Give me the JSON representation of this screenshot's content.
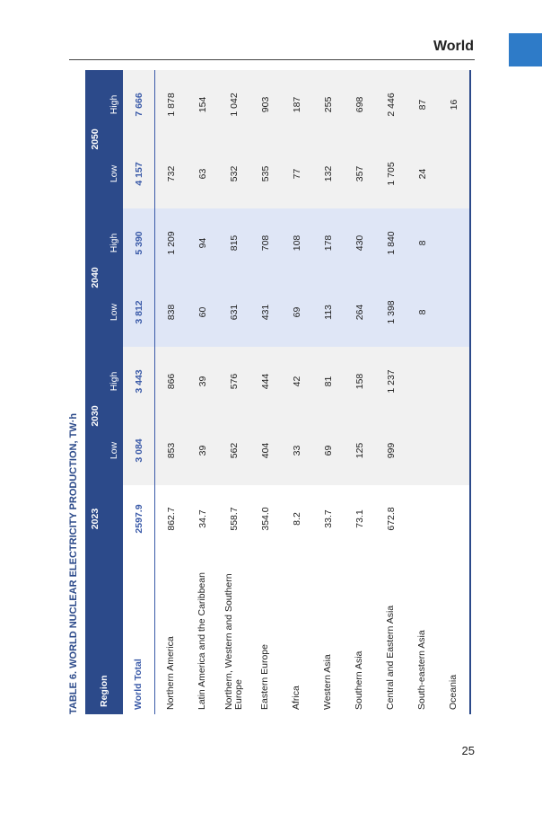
{
  "header": {
    "section": "World"
  },
  "table": {
    "title": "TABLE 6. WORLD NUCLEAR ELECTRICITY PRODUCTION, TW·h",
    "columns": {
      "region": "Region",
      "base_year": "2023",
      "years": [
        {
          "year": "2030",
          "low": "Low",
          "high": "High"
        },
        {
          "year": "2040",
          "low": "Low",
          "high": "High"
        },
        {
          "year": "2050",
          "low": "Low",
          "high": "High"
        }
      ]
    },
    "rows": [
      {
        "region": "World Total",
        "values": [
          "2597.9",
          "3 084",
          "3 443",
          "3 812",
          "5 390",
          "4 157",
          "7 666"
        ]
      },
      {
        "region": "Northern America",
        "values": [
          "862.7",
          "853",
          "866",
          "838",
          "1 209",
          "732",
          "1 878"
        ]
      },
      {
        "region": "Latin America and the Caribbean",
        "values": [
          "34.7",
          "39",
          "39",
          "60",
          "94",
          "63",
          "154"
        ]
      },
      {
        "region": "Northern, Western and Southern Europe",
        "values": [
          "558.7",
          "562",
          "576",
          "631",
          "815",
          "532",
          "1 042"
        ]
      },
      {
        "region": "Eastern Europe",
        "values": [
          "354.0",
          "404",
          "444",
          "431",
          "708",
          "535",
          "903"
        ]
      },
      {
        "region": "Africa",
        "values": [
          "8.2",
          "33",
          "42",
          "69",
          "108",
          "77",
          "187"
        ]
      },
      {
        "region": "Western Asia",
        "values": [
          "33.7",
          "69",
          "81",
          "113",
          "178",
          "132",
          "255"
        ]
      },
      {
        "region": "Southern Asia",
        "values": [
          "73.1",
          "125",
          "158",
          "264",
          "430",
          "357",
          "698"
        ]
      },
      {
        "region": "Central and Eastern Asia",
        "values": [
          "672.8",
          "999",
          "1 237",
          "1 398",
          "1 840",
          "1 705",
          "2 446"
        ]
      },
      {
        "region": "South-eastern Asia",
        "values": [
          null,
          null,
          null,
          "8",
          "8",
          "24",
          "87"
        ]
      },
      {
        "region": "Oceania",
        "values": [
          null,
          null,
          null,
          null,
          null,
          null,
          "16"
        ]
      }
    ]
  },
  "footer": {
    "page": "25"
  }
}
